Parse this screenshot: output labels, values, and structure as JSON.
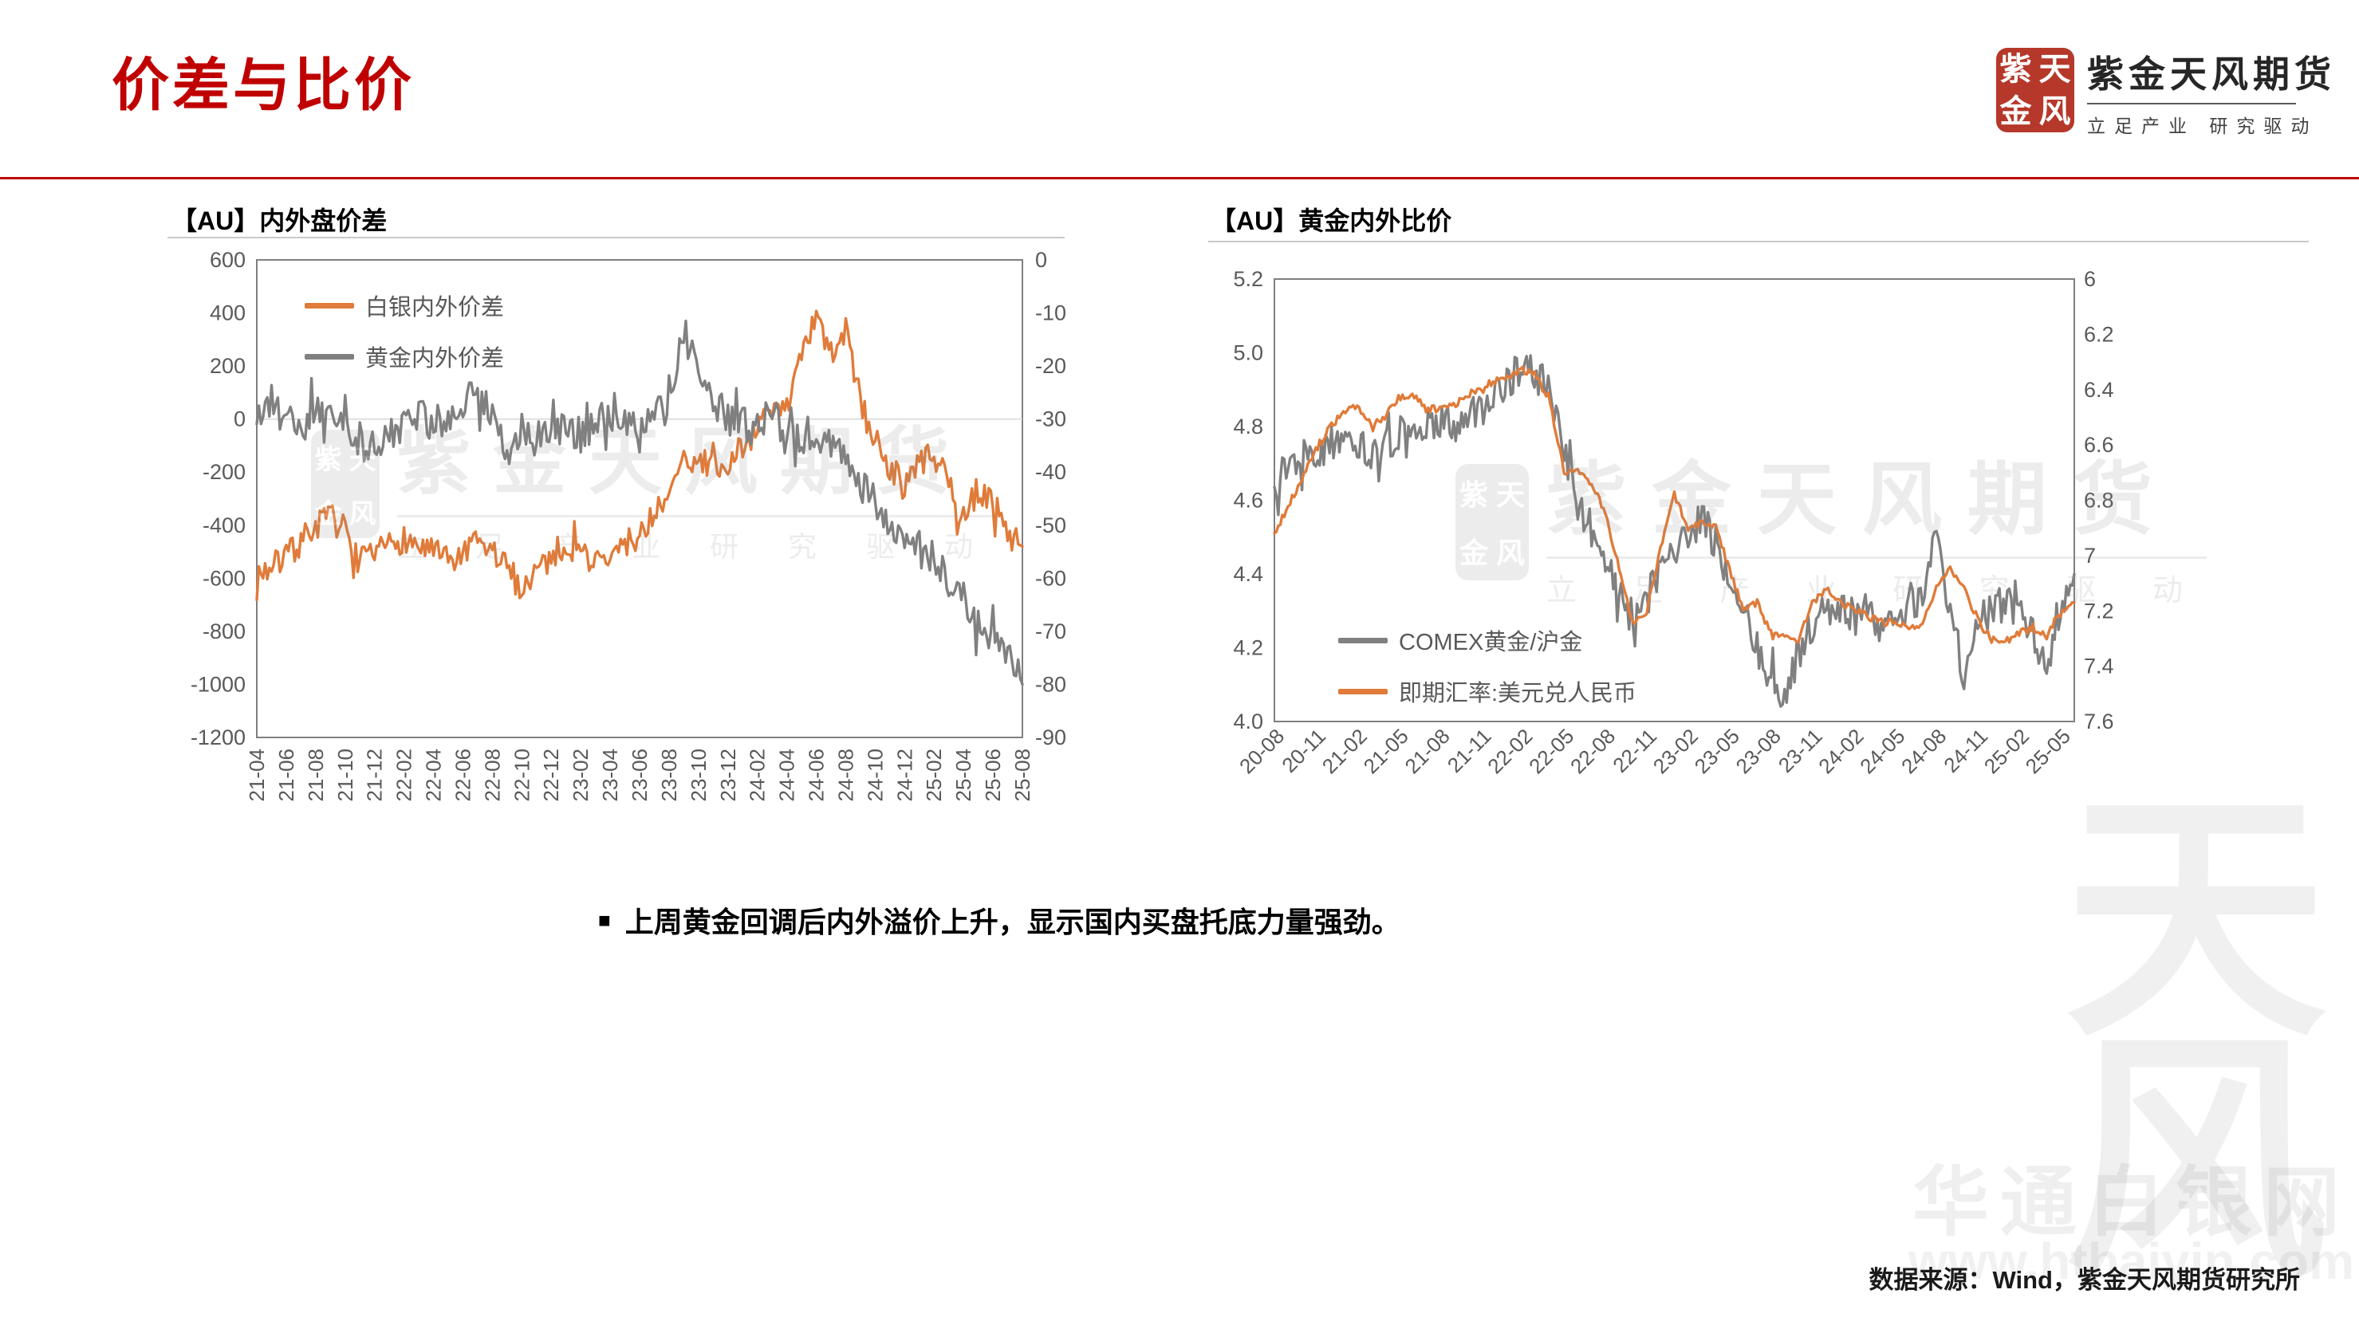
{
  "slide": {
    "title": "价差与比价",
    "bullet_glyph": "■",
    "bullet": "上周黄金回调后内外溢价上升，显示国内买盘托底力量强劲。",
    "source": "数据来源：Wind，紫金天风期货研究所"
  },
  "logo": {
    "name": "紫金天风期货",
    "slogan": "立足产业 研究驱动",
    "seal_chars": [
      "紫",
      "天",
      "金",
      "风"
    ],
    "seal_color": "#B5382A"
  },
  "watermark": {
    "brand": "紫金天风期货",
    "slogan": "立 足 产 业  研 究 驱 动",
    "seal_chars": [
      "紫",
      "天",
      "金",
      "风"
    ],
    "corner_chars": [
      "天",
      "风"
    ],
    "corner_text": "华通白银网",
    "corner_url": "www.htbaiyin.com"
  },
  "colors": {
    "accent_red": "#C00000",
    "orange": "#E07B39",
    "gray": "#808080",
    "axis_text": "#595959",
    "grid": "#D9D9D9",
    "plot_border": "#7F7F7F"
  },
  "chart_data": [
    {
      "type": "line",
      "title": "【AU】内外盘价差",
      "x_tick_labels": [
        "21-04",
        "21-06",
        "21-08",
        "21-10",
        "21-12",
        "22-02",
        "22-04",
        "22-06",
        "22-08",
        "22-10",
        "22-12",
        "23-02",
        "23-04",
        "23-06",
        "23-08",
        "23-10",
        "23-12",
        "24-02",
        "24-04",
        "24-06",
        "24-08",
        "24-10",
        "24-12",
        "25-02",
        "25-04",
        "25-06",
        "25-08"
      ],
      "x_tick_every_months": 2,
      "x_months_total": 53,
      "left_axis": {
        "top": 600,
        "bottom": -1200,
        "ticks": [
          "600",
          "400",
          "200",
          "0",
          "-200",
          "-400",
          "-600",
          "-800",
          "-1000",
          "-1200"
        ]
      },
      "right_axis": {
        "top": 0,
        "bottom": -90,
        "ticks": [
          "0",
          "-10",
          "-20",
          "-30",
          "-40",
          "-50",
          "-60",
          "-70",
          "-80",
          "-90"
        ]
      },
      "gridlines_left_values": [
        0
      ],
      "legend_position": "inside-top-left",
      "series": [
        {
          "name": "白银内外价差",
          "color": "#E07B39",
          "axis": "left",
          "jitter": 55,
          "monthly": [
            -580,
            -560,
            -520,
            -460,
            -400,
            -370,
            -420,
            -540,
            -520,
            -470,
            -450,
            -480,
            -500,
            -540,
            -520,
            -470,
            -500,
            -560,
            -640,
            -560,
            -520,
            -470,
            -500,
            -540,
            -530,
            -470,
            -440,
            -360,
            -300,
            -160,
            -140,
            -200,
            -180,
            -90,
            -40,
            20,
            60,
            220,
            380,
            240,
            340,
            60,
            -80,
            -180,
            -250,
            -160,
            -140,
            -250,
            -380,
            -260,
            -320,
            -420,
            -480
          ]
        },
        {
          "name": "黄金内外价差",
          "color": "#808080",
          "axis": "right",
          "jitter": 3.4,
          "monthly": [
            -30,
            -28,
            -30,
            -33,
            -28,
            -30,
            -32,
            -34,
            -36,
            -33,
            -31,
            -29,
            -31,
            -30,
            -27,
            -25,
            -28,
            -36,
            -32,
            -34,
            -33,
            -32,
            -34,
            -31,
            -29,
            -31,
            -33,
            -29,
            -25,
            -14,
            -19,
            -26,
            -30,
            -31,
            -32,
            -29,
            -33,
            -35,
            -36,
            -34,
            -39,
            -42,
            -46,
            -50,
            -53,
            -55,
            -56,
            -60,
            -64,
            -68,
            -71,
            -75,
            -80
          ]
        }
      ]
    },
    {
      "type": "line",
      "title": "【AU】黄金内外比价",
      "x_tick_labels": [
        "20-08",
        "20-11",
        "21-02",
        "21-05",
        "21-08",
        "21-11",
        "22-02",
        "22-05",
        "22-08",
        "22-11",
        "23-02",
        "23-05",
        "23-08",
        "23-11",
        "24-02",
        "24-05",
        "24-08",
        "24-11",
        "25-02",
        "25-05"
      ],
      "x_tick_every_months": 3,
      "x_months_total": 59,
      "left_axis": {
        "top": 5.2,
        "bottom": 4.0,
        "ticks": [
          "5.2",
          "5.0",
          "4.8",
          "4.6",
          "4.4",
          "4.2",
          "4.0"
        ]
      },
      "right_axis": {
        "top": 6,
        "bottom": 7.6,
        "ticks": [
          "6",
          "6.2",
          "6.4",
          "6.6",
          "6.8",
          "7",
          "7.2",
          "7.4",
          "7.6"
        ]
      },
      "gridlines_left_values": [],
      "legend_position": "inside-bottom-left",
      "series": [
        {
          "name": "COMEX黄金/沪金",
          "color": "#808080",
          "axis": "left",
          "jitter": 0.05,
          "monthly": [
            4.65,
            4.7,
            4.72,
            4.73,
            4.74,
            4.74,
            4.76,
            4.72,
            4.75,
            4.78,
            4.77,
            4.79,
            4.82,
            4.8,
            4.83,
            4.86,
            4.88,
            4.92,
            4.97,
            4.94,
            4.9,
            4.75,
            4.58,
            4.52,
            4.45,
            4.35,
            4.28,
            4.33,
            4.42,
            4.45,
            4.5,
            4.55,
            4.48,
            4.4,
            4.32,
            4.2,
            4.1,
            4.08,
            4.18,
            4.26,
            4.3,
            4.32,
            4.28,
            4.3,
            4.26,
            4.28,
            4.3,
            4.35,
            4.5,
            4.3,
            4.12,
            4.28,
            4.3,
            4.32,
            4.3,
            4.25,
            4.15,
            4.32,
            4.4
          ]
        },
        {
          "name": "即期汇率:美元兑人民币",
          "color": "#E07B39",
          "axis": "right",
          "jitter": 0.013,
          "monthly": [
            6.92,
            6.82,
            6.72,
            6.62,
            6.54,
            6.48,
            6.46,
            6.53,
            6.5,
            6.43,
            6.42,
            6.47,
            6.47,
            6.46,
            6.42,
            6.39,
            6.37,
            6.35,
            6.33,
            6.35,
            6.45,
            6.7,
            6.7,
            6.74,
            6.85,
            7.05,
            7.25,
            7.2,
            6.97,
            6.78,
            6.9,
            6.88,
            6.9,
            7.05,
            7.2,
            7.17,
            7.28,
            7.3,
            7.31,
            7.17,
            7.12,
            7.17,
            7.19,
            7.22,
            7.24,
            7.24,
            7.26,
            7.25,
            7.12,
            7.05,
            7.12,
            7.23,
            7.3,
            7.31,
            7.28,
            7.26,
            7.29,
            7.2,
            7.17
          ]
        }
      ]
    }
  ]
}
